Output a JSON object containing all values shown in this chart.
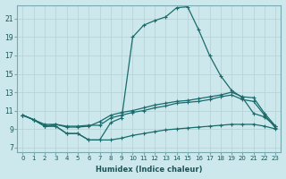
{
  "xlabel": "Humidex (Indice chaleur)",
  "bg_color": "#cce8ec",
  "grid_color": "#b8d4d8",
  "line_color": "#1a6b6b",
  "xlim": [
    -0.5,
    23.5
  ],
  "ylim": [
    6.5,
    22.5
  ],
  "yticks": [
    7,
    9,
    11,
    13,
    15,
    17,
    19,
    21
  ],
  "xticks": [
    0,
    1,
    2,
    3,
    4,
    5,
    6,
    7,
    8,
    9,
    10,
    11,
    12,
    13,
    14,
    15,
    16,
    17,
    18,
    19,
    20,
    21,
    22,
    23
  ],
  "line1_x": [
    0,
    1,
    2,
    3,
    4,
    5,
    6,
    7,
    8,
    9,
    10,
    11,
    12,
    13,
    14,
    15,
    16,
    17,
    18,
    19,
    20,
    21,
    22,
    23
  ],
  "line1_y": [
    10.5,
    10.0,
    9.3,
    9.3,
    8.5,
    8.5,
    7.8,
    7.8,
    9.7,
    10.2,
    19.0,
    20.3,
    20.8,
    21.2,
    22.2,
    22.3,
    19.8,
    17.0,
    14.8,
    13.2,
    12.4,
    10.7,
    10.3,
    9.3
  ],
  "line2_x": [
    0,
    1,
    2,
    3,
    4,
    5,
    6,
    7,
    8,
    9,
    10,
    11,
    12,
    13,
    14,
    15,
    16,
    17,
    18,
    19,
    20,
    21,
    22,
    23
  ],
  "line2_y": [
    10.5,
    10.0,
    9.5,
    9.5,
    9.2,
    9.2,
    9.3,
    9.8,
    10.5,
    10.8,
    11.0,
    11.3,
    11.6,
    11.8,
    12.0,
    12.1,
    12.3,
    12.5,
    12.7,
    13.0,
    12.5,
    12.4,
    10.7,
    9.3
  ],
  "line3_x": [
    0,
    1,
    2,
    3,
    4,
    5,
    6,
    7,
    8,
    9,
    10,
    11,
    12,
    13,
    14,
    15,
    16,
    17,
    18,
    19,
    20,
    21,
    22,
    23
  ],
  "line3_y": [
    10.5,
    10.0,
    9.3,
    9.5,
    9.3,
    9.3,
    9.4,
    9.4,
    10.2,
    10.5,
    10.8,
    11.0,
    11.3,
    11.5,
    11.8,
    11.9,
    12.0,
    12.2,
    12.5,
    12.7,
    12.2,
    12.0,
    10.5,
    9.1
  ],
  "line4_x": [
    0,
    1,
    2,
    3,
    4,
    5,
    6,
    7,
    8,
    9,
    10,
    11,
    12,
    13,
    14,
    15,
    16,
    17,
    18,
    19,
    20,
    21,
    22,
    23
  ],
  "line4_y": [
    10.5,
    10.0,
    9.3,
    9.3,
    8.5,
    8.5,
    7.8,
    7.8,
    7.8,
    8.0,
    8.3,
    8.5,
    8.7,
    8.9,
    9.0,
    9.1,
    9.2,
    9.3,
    9.4,
    9.5,
    9.5,
    9.5,
    9.3,
    9.0
  ]
}
